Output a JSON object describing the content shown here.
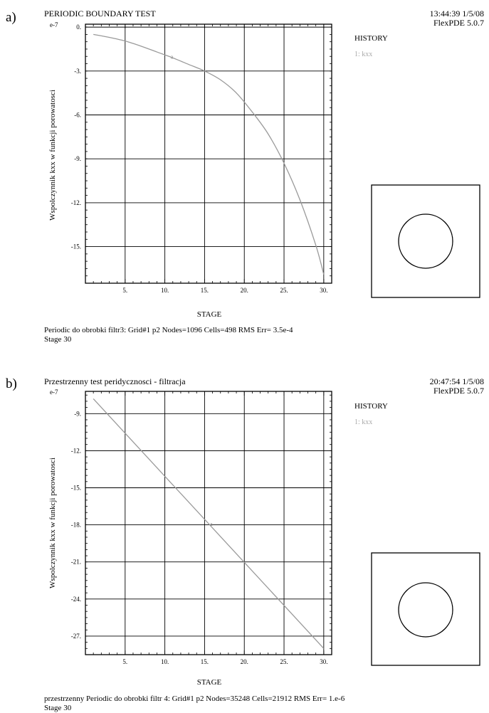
{
  "chart_data": [
    {
      "type": "line",
      "panel_label": "a)",
      "title": "PERIODIC BOUNDARY TEST",
      "timestamp": "13:44:39 1/5/08",
      "software": "FlexPDE 5.0.7",
      "xlabel": "STAGE",
      "ylabel": "Wspolczynnik kxx w funkcji porowatosci",
      "y_exponent": "e-7",
      "xlim": [
        0,
        31
      ],
      "ylim": [
        -17.5,
        0.2
      ],
      "x_ticks": [
        5,
        10,
        15,
        20,
        25,
        30
      ],
      "x_tick_labels": [
        "5.",
        "10.",
        "15.",
        "20.",
        "25.",
        "30."
      ],
      "y_ticks": [
        0,
        -3,
        -6,
        -9,
        -12,
        -15
      ],
      "y_tick_labels": [
        "0.",
        "-3.",
        "-6.",
        "-9.",
        "-12.",
        "-15."
      ],
      "grid": true,
      "legend_title": "HISTORY",
      "legend_entries": [
        "1: kxx"
      ],
      "series": [
        {
          "name": "kxx",
          "marker_label": "a",
          "x": [
            1,
            3,
            5,
            7,
            9,
            11,
            13,
            15,
            17,
            19,
            21,
            23,
            25,
            27,
            29,
            30
          ],
          "values": [
            -0.5,
            -0.7,
            -0.95,
            -1.3,
            -1.7,
            -2.1,
            -2.55,
            -3.0,
            -3.6,
            -4.5,
            -5.8,
            -7.3,
            -9.3,
            -11.8,
            -14.9,
            -16.9
          ]
        }
      ],
      "footer_line1": "Periodic do obrobki filtr3:  Grid#1  p2  Nodes=1096 Cells=498 RMS Err= 3.5e-4",
      "footer_line2": "Stage 30"
    },
    {
      "type": "line",
      "panel_label": "b)",
      "title": "Przestrzenny test peridycznosci - filtracja",
      "timestamp": "20:47:54 1/5/08",
      "software": "FlexPDE 5.0.7",
      "xlabel": "STAGE",
      "ylabel": "Wspolczynnik kxx w funkcji porowatosci",
      "y_exponent": "e-7",
      "xlim": [
        0,
        31
      ],
      "ylim": [
        -28.5,
        -7.2
      ],
      "x_ticks": [
        5,
        10,
        15,
        20,
        25,
        30
      ],
      "x_tick_labels": [
        "5.",
        "10.",
        "15.",
        "20.",
        "25.",
        "30."
      ],
      "y_ticks": [
        -9,
        -12,
        -15,
        -18,
        -21,
        -24,
        -27
      ],
      "y_tick_labels": [
        "-9.",
        "-12.",
        "-15.",
        "-18.",
        "-21.",
        "-24.",
        "-27."
      ],
      "grid": true,
      "legend_title": "HISTORY",
      "legend_entries": [
        "1: kxx"
      ],
      "series": [
        {
          "name": "kxx",
          "marker_label": "a",
          "x": [
            1,
            30
          ],
          "values": [
            -7.8,
            -28.0
          ]
        }
      ],
      "footer_line1": "przestrzenny Periodic do obrobki filtr 4:  Grid#1  p2  Nodes=35248 Cells=21912 RMS Err= 1.e-6",
      "footer_line2": "Stage 30"
    }
  ]
}
